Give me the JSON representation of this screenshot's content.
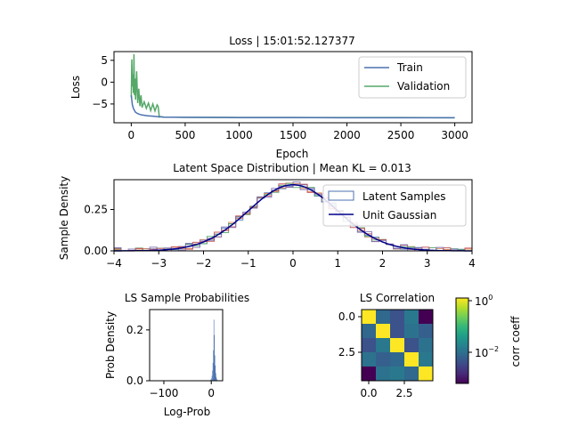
{
  "chart_data": [
    {
      "type": "line",
      "title": "Loss | 15:01:52.127377",
      "xlabel": "Epoch",
      "ylabel": "Loss",
      "xlim": [
        -160,
        3160
      ],
      "ylim": [
        -9.3,
        7.0
      ],
      "xticks": [
        0,
        500,
        1000,
        1500,
        2000,
        2500,
        3000
      ],
      "xtick_labels": [
        "0",
        "500",
        "1000",
        "1500",
        "2000",
        "2500",
        "3000"
      ],
      "yticks": [
        5,
        0,
        -5
      ],
      "ytick_labels": [
        "5",
        "0",
        "−5"
      ],
      "legend_position": "top-right",
      "series": [
        {
          "name": "Train",
          "color": "#4c72b0",
          "x": [
            0,
            10,
            20,
            30,
            40,
            60,
            80,
            100,
            150,
            200,
            250,
            300,
            500,
            1000,
            1500,
            2000,
            2500,
            3000
          ],
          "y": [
            -3.0,
            -5.2,
            -6.0,
            -6.5,
            -6.9,
            -7.2,
            -7.4,
            -7.5,
            -7.7,
            -7.8,
            -7.9,
            -8.0,
            -8.05,
            -8.1,
            -8.1,
            -8.15,
            -8.15,
            -8.15
          ]
        },
        {
          "name": "Validation",
          "color": "#55a868",
          "x": [
            0,
            5,
            10,
            15,
            20,
            25,
            30,
            35,
            40,
            50,
            60,
            70,
            80,
            90,
            100,
            120,
            140,
            160,
            180,
            200,
            220,
            240,
            250,
            260,
            270,
            300,
            500,
            1000,
            1500,
            2000,
            2500,
            3000
          ],
          "y": [
            -3.5,
            5.2,
            -1.0,
            1.8,
            -2.5,
            6.4,
            -3.0,
            0.8,
            -4.0,
            2.5,
            -4.8,
            -1.5,
            -5.5,
            -3.0,
            -5.8,
            -4.5,
            -6.0,
            -4.8,
            -6.5,
            -5.0,
            -6.6,
            -5.2,
            -5.6,
            -8.0,
            -7.9,
            -8.0,
            -8.05,
            -8.1,
            -8.1,
            -8.1,
            -8.1,
            -8.15
          ]
        }
      ]
    },
    {
      "type": "area",
      "title": "Latent Space Distribution | Mean KL = 0.013",
      "xlabel": "",
      "ylabel": "Sample Density",
      "xlim": [
        -4,
        4
      ],
      "ylim": [
        0,
        0.43
      ],
      "xticks": [
        -4,
        -3,
        -2,
        -1,
        0,
        1,
        2,
        3,
        4
      ],
      "xtick_labels": [
        "−4",
        "−3",
        "−2",
        "−1",
        "0",
        "1",
        "2",
        "3",
        "4"
      ],
      "yticks": [
        0.0,
        0.25
      ],
      "ytick_labels": [
        "0.00",
        "0.25"
      ],
      "legend_position": "top-right",
      "series": [
        {
          "name": "Latent Samples",
          "color": "#4c72b0"
        },
        {
          "name": "Unit Gaussian",
          "color": "#00008b"
        }
      ]
    },
    {
      "type": "bar",
      "title": "LS Sample Probabilities",
      "xlabel": "Log-Prob",
      "ylabel": "Prob Density",
      "xlim": [
        -130,
        24
      ],
      "ylim": [
        0,
        0.28
      ],
      "xticks": [
        -100,
        0
      ],
      "xtick_labels": [
        "−100",
        "0"
      ],
      "yticks": [
        0.0,
        0.2
      ],
      "ytick_labels": [
        "0.0",
        "0.2"
      ],
      "bars": {
        "x": [
          -2,
          0,
          1,
          2,
          3,
          4,
          5,
          6,
          7,
          8,
          9,
          10,
          11,
          12
        ],
        "values": [
          0.005,
          0.01,
          0.02,
          0.04,
          0.07,
          0.12,
          0.24,
          0.18,
          0.1,
          0.06,
          0.03,
          0.015,
          0.008,
          0.003
        ],
        "color": "#4c72b0"
      }
    },
    {
      "type": "heatmap",
      "title": "LS Correlation",
      "xticks": [
        0,
        2.5
      ],
      "xtick_labels": [
        "0.0",
        "2.5"
      ],
      "yticks": [
        0,
        2.5
      ],
      "ytick_labels": [
        "0.0",
        "2.5"
      ],
      "matrix": [
        [
          "#fde725",
          "#31688e",
          "#3b528b",
          "#2a788e",
          "#440154"
        ],
        [
          "#31688e",
          "#fde725",
          "#3b528b",
          "#2c728e",
          "#35608d"
        ],
        [
          "#3b528b",
          "#2a788e",
          "#fde725",
          "#3b528b",
          "#2c728e"
        ],
        [
          "#2c728e",
          "#35608d",
          "#31688e",
          "#fde725",
          "#2a788e"
        ],
        [
          "#440154",
          "#2c728e",
          "#2a788e",
          "#31688e",
          "#fde725"
        ]
      ],
      "colorbar": {
        "label": "corr coeff",
        "tick_top": "10",
        "tick_top_exp": "0",
        "tick_mid": "10",
        "tick_mid_exp": "−2",
        "colors": [
          "#440154",
          "#482878",
          "#3e4989",
          "#31688e",
          "#26828e",
          "#1f9e89",
          "#35b779",
          "#6ece58",
          "#b5de2b",
          "#fde725"
        ]
      }
    }
  ]
}
